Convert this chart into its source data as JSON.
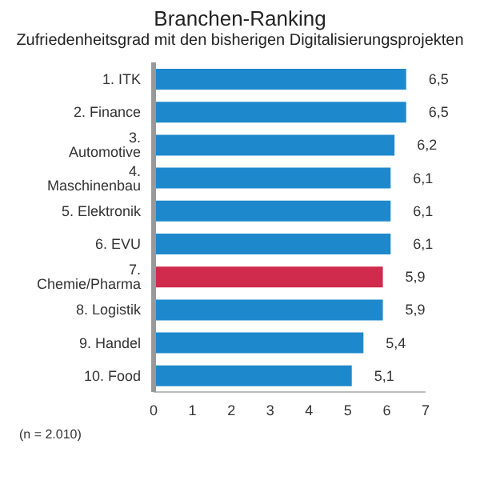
{
  "chart_data": {
    "type": "bar",
    "orientation": "horizontal",
    "title": "Branchen-Ranking",
    "subtitle": "Zufriedenheitsgrad mit den bisherigen Digitalisierungsprojekten",
    "categories": [
      "1. ITK",
      "2. Finance",
      "3. Automotive",
      "4. Maschinenbau",
      "5. Elektronik",
      "6. EVU",
      "7. Chemie/Pharma",
      "8. Logistik",
      "9. Handel",
      "10. Food"
    ],
    "values": [
      6.5,
      6.5,
      6.2,
      6.1,
      6.1,
      6.1,
      5.9,
      5.9,
      5.4,
      5.1
    ],
    "value_labels": [
      "6,5",
      "6,5",
      "6,2",
      "6,1",
      "6,1",
      "6,1",
      "5,9",
      "5,9",
      "5,4",
      "5,1"
    ],
    "colors": [
      "#1e88cc",
      "#1e88cc",
      "#1e88cc",
      "#1e88cc",
      "#1e88cc",
      "#1e88cc",
      "#d02a4c",
      "#1e88cc",
      "#1e88cc",
      "#1e88cc"
    ],
    "xlim": [
      0,
      7
    ],
    "xticks": [
      0,
      1,
      2,
      3,
      4,
      5,
      6,
      7
    ],
    "grid": false,
    "annotations": [
      "(n = 2.010)"
    ]
  }
}
